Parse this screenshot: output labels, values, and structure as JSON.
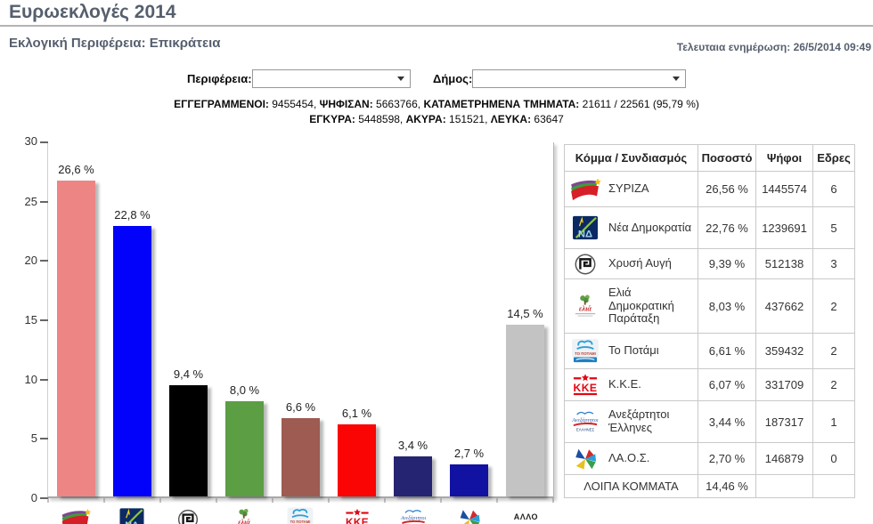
{
  "page": {
    "title": "Ευρωεκλογές 2014",
    "subtitle": "Εκλογική Περιφέρεια: Επικράτεια",
    "last_update": "Τελευταια ενημέρωση: 26/5/2014 09:49"
  },
  "filters": {
    "region_label": "Περιφέρεια:",
    "region_value": "",
    "municipality_label": "Δήμος:",
    "municipality_value": ""
  },
  "stats": {
    "line1": [
      {
        "label": "ΕΓΓΕΓΡΑΜΜΕΝΟΙ:",
        "value": " 9455454, "
      },
      {
        "label": "ΨΗΦΙΣΑΝ:",
        "value": " 5663766, "
      },
      {
        "label": "ΚΑΤΑΜΕΤΡΗΜΕΝΑ ΤΜΗΜΑΤΑ:",
        "value": " 21611 / 22561 (95,79 %)"
      }
    ],
    "line2": [
      {
        "label": "ΕΓΚΥΡΑ:",
        "value": " 5448598, "
      },
      {
        "label": "ΑΚΥΡΑ:",
        "value": " 151521, "
      },
      {
        "label": "ΛΕΥΚΑ:",
        "value": " 63647"
      }
    ]
  },
  "chart_data": {
    "type": "bar",
    "title": "",
    "xlabel": "",
    "ylabel": "",
    "ylim": [
      0,
      30
    ],
    "yticks": [
      30,
      25,
      20,
      15,
      10,
      5,
      0
    ],
    "grid": false,
    "legend": "none",
    "categories": [
      "ΣΥΡΙΖΑ",
      "Νέα Δημοκρατία",
      "Χρυσή Αυγή",
      "Ελιά Δημοκρατική Παράταξη",
      "Το Ποτάμι",
      "Κ.Κ.Ε.",
      "Ανεξάρτητοι Έλληνες",
      "ΛΑ.Ο.Σ.",
      "ΑΛΛΟ"
    ],
    "values": [
      26.6,
      22.8,
      9.4,
      8.0,
      6.6,
      6.1,
      3.4,
      2.7,
      14.5
    ],
    "bar_labels": [
      "26,6 %",
      "22,8 %",
      "9,4 %",
      "8,0 %",
      "6,6 %",
      "6,1 %",
      "3,4 %",
      "2,7 %",
      "14,5 %"
    ],
    "colors": [
      "#ee8585",
      "#0202fa",
      "#000000",
      "#5b9e44",
      "#9d5b52",
      "#fb0404",
      "#252472",
      "#1212a2",
      "#c3c3c3"
    ]
  },
  "table": {
    "headers": [
      "Κόμμα / Συνδιασμός",
      "Ποσοστό",
      "Ψήφοι",
      "Εδρες"
    ],
    "rows": [
      {
        "party": "ΣΥΡΙΖΑ",
        "percent": "26,56 %",
        "votes": "1445574",
        "seats": "6"
      },
      {
        "party": "Νέα Δημοκρατία",
        "percent": "22,76 %",
        "votes": "1239691",
        "seats": "5"
      },
      {
        "party": "Χρυσή Αυγή",
        "percent": "9,39 %",
        "votes": "512138",
        "seats": "3"
      },
      {
        "party": "Ελιά Δημοκρατική Παράταξη",
        "percent": "8,03 %",
        "votes": "437662",
        "seats": "2"
      },
      {
        "party": "Το Ποτάμι",
        "percent": "6,61 %",
        "votes": "359432",
        "seats": "2"
      },
      {
        "party": "Κ.Κ.Ε.",
        "percent": "6,07 %",
        "votes": "331709",
        "seats": "2"
      },
      {
        "party": "Ανεξάρτητοι Έλληνες",
        "percent": "3,44 %",
        "votes": "187317",
        "seats": "1"
      },
      {
        "party": "ΛΑ.Ο.Σ.",
        "percent": "2,70 %",
        "votes": "146879",
        "seats": "0"
      }
    ],
    "footer": {
      "party": "ΛΟΙΠΑ ΚΟΜΜΑΤΑ",
      "percent": "14,46 %",
      "votes": "",
      "seats": ""
    }
  }
}
